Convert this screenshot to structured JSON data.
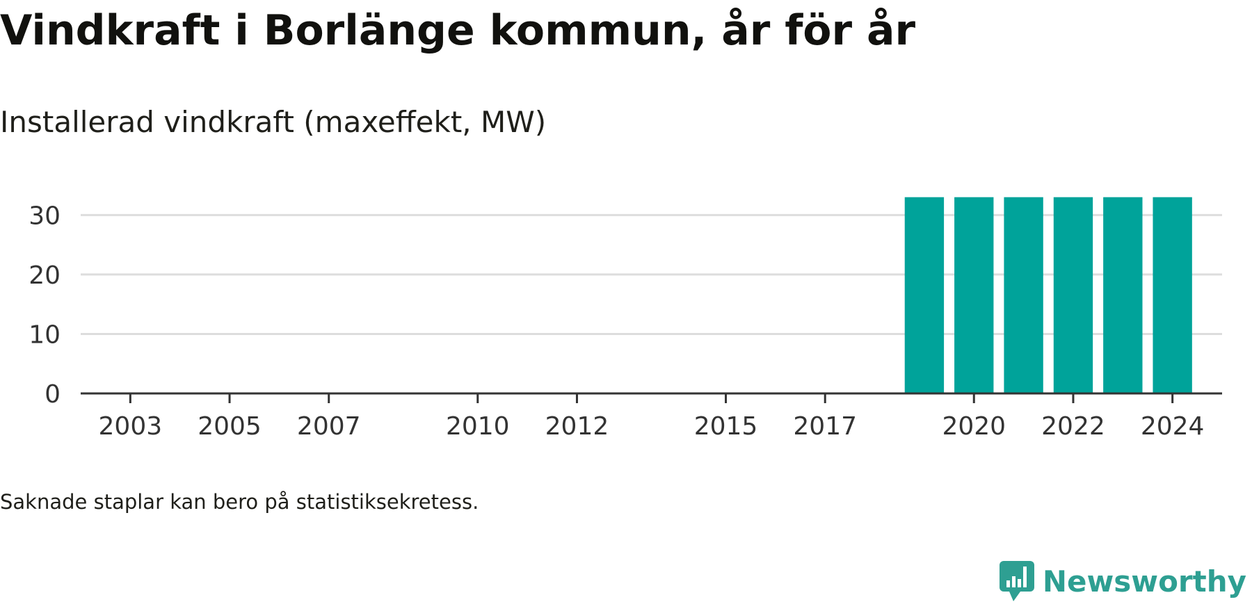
{
  "header": {
    "title": "Vindkraft i Borlänge kommun, år för år",
    "subtitle": "Installerad vindkraft (maxeffekt, MW)"
  },
  "footer": {
    "note": "Saknade staplar kan bero på statistiksekretess.",
    "brand": "Newsworthy"
  },
  "colors": {
    "bar": "#00a39a",
    "brand": "#2e9f92"
  },
  "chart_data": {
    "type": "bar",
    "x": [
      2019,
      2020,
      2021,
      2022,
      2023,
      2024
    ],
    "values": [
      33,
      33,
      33,
      33,
      33,
      33
    ],
    "xlim": [
      2002,
      2025
    ],
    "xticks": [
      2003,
      2005,
      2007,
      2010,
      2012,
      2015,
      2017,
      2020,
      2022,
      2024
    ],
    "ylim": [
      0,
      36
    ],
    "yticks": [
      0,
      10,
      20,
      30
    ],
    "grid": true
  }
}
